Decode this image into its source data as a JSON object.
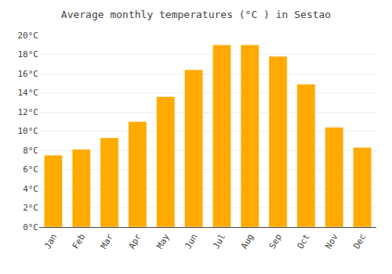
{
  "chart_data": {
    "type": "bar",
    "title": "Average monthly temperatures (°C ) in Sestao",
    "categories": [
      "Jan",
      "Feb",
      "Mar",
      "Apr",
      "May",
      "Jun",
      "Jul",
      "Aug",
      "Sep",
      "Oct",
      "Nov",
      "Dec"
    ],
    "values": [
      7.5,
      8.1,
      9.3,
      11.0,
      13.6,
      16.4,
      19.0,
      19.0,
      17.8,
      14.9,
      10.4,
      8.3
    ],
    "color": "#FFAA00",
    "ylim": [
      0,
      20
    ],
    "yticks": [
      {
        "value": 0,
        "label": "0°C"
      },
      {
        "value": 2,
        "label": "2°C"
      },
      {
        "value": 4,
        "label": "4°C"
      },
      {
        "value": 6,
        "label": "6°C"
      },
      {
        "value": 8,
        "label": "8°C"
      },
      {
        "value": 10,
        "label": "10°C"
      },
      {
        "value": 12,
        "label": "12°C"
      },
      {
        "value": 14,
        "label": "14°C"
      },
      {
        "value": 16,
        "label": "16°C"
      },
      {
        "value": 18,
        "label": "18°C"
      },
      {
        "value": 20,
        "label": "20°C"
      }
    ],
    "grid": true
  }
}
